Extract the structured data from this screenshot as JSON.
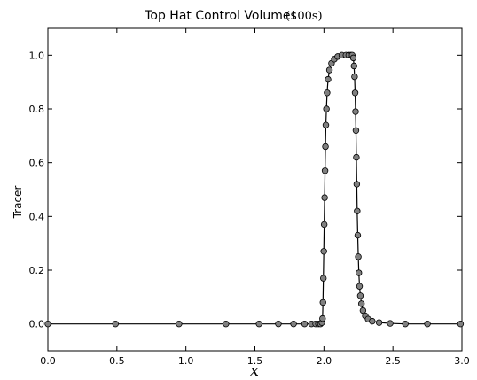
{
  "chart_data": {
    "type": "line",
    "title": "Top Hat Control Volumes",
    "title_unit": "(100s)",
    "xlabel": "x",
    "ylabel": "Tracer",
    "xlim": [
      0.0,
      3.0
    ],
    "ylim": [
      -0.1,
      1.1
    ],
    "xticks": [
      "0.0",
      "0.5",
      "1.0",
      "1.5",
      "2.0",
      "2.5",
      "3.0"
    ],
    "yticks": [
      "0.0",
      "0.2",
      "0.4",
      "0.6",
      "0.8",
      "1.0"
    ],
    "grid": false,
    "marker_color": "#808080",
    "line_color": "#000000",
    "series": [
      {
        "points": [
          [
            0.0,
            0.0
          ],
          [
            0.49,
            0.0
          ],
          [
            0.95,
            0.0
          ],
          [
            1.29,
            0.0
          ],
          [
            1.53,
            0.0
          ],
          [
            1.67,
            0.0
          ],
          [
            1.78,
            0.0
          ],
          [
            1.86,
            0.0
          ],
          [
            1.91,
            0.0
          ],
          [
            1.94,
            0.0
          ],
          [
            1.96,
            0.0
          ],
          [
            1.975,
            0.0
          ],
          [
            1.985,
            0.005
          ],
          [
            1.99,
            0.02
          ],
          [
            1.993,
            0.08
          ],
          [
            1.996,
            0.17
          ],
          [
            1.999,
            0.27
          ],
          [
            2.002,
            0.37
          ],
          [
            2.005,
            0.47
          ],
          [
            2.008,
            0.57
          ],
          [
            2.011,
            0.66
          ],
          [
            2.014,
            0.74
          ],
          [
            2.018,
            0.8
          ],
          [
            2.023,
            0.86
          ],
          [
            2.03,
            0.91
          ],
          [
            2.04,
            0.945
          ],
          [
            2.055,
            0.97
          ],
          [
            2.075,
            0.985
          ],
          [
            2.1,
            0.995
          ],
          [
            2.13,
            1.0
          ],
          [
            2.16,
            1.0
          ],
          [
            2.18,
            1.0
          ],
          [
            2.195,
            1.0
          ],
          [
            2.205,
            1.0
          ],
          [
            2.213,
            0.99
          ],
          [
            2.218,
            0.96
          ],
          [
            2.222,
            0.92
          ],
          [
            2.226,
            0.86
          ],
          [
            2.229,
            0.79
          ],
          [
            2.232,
            0.72
          ],
          [
            2.235,
            0.62
          ],
          [
            2.238,
            0.52
          ],
          [
            2.241,
            0.42
          ],
          [
            2.245,
            0.33
          ],
          [
            2.249,
            0.25
          ],
          [
            2.253,
            0.19
          ],
          [
            2.258,
            0.14
          ],
          [
            2.264,
            0.105
          ],
          [
            2.272,
            0.075
          ],
          [
            2.283,
            0.05
          ],
          [
            2.3,
            0.03
          ],
          [
            2.32,
            0.018
          ],
          [
            2.35,
            0.01
          ],
          [
            2.4,
            0.005
          ],
          [
            2.48,
            0.002
          ],
          [
            2.59,
            0.0
          ],
          [
            2.75,
            0.0
          ],
          [
            2.99,
            0.0
          ]
        ]
      }
    ]
  }
}
